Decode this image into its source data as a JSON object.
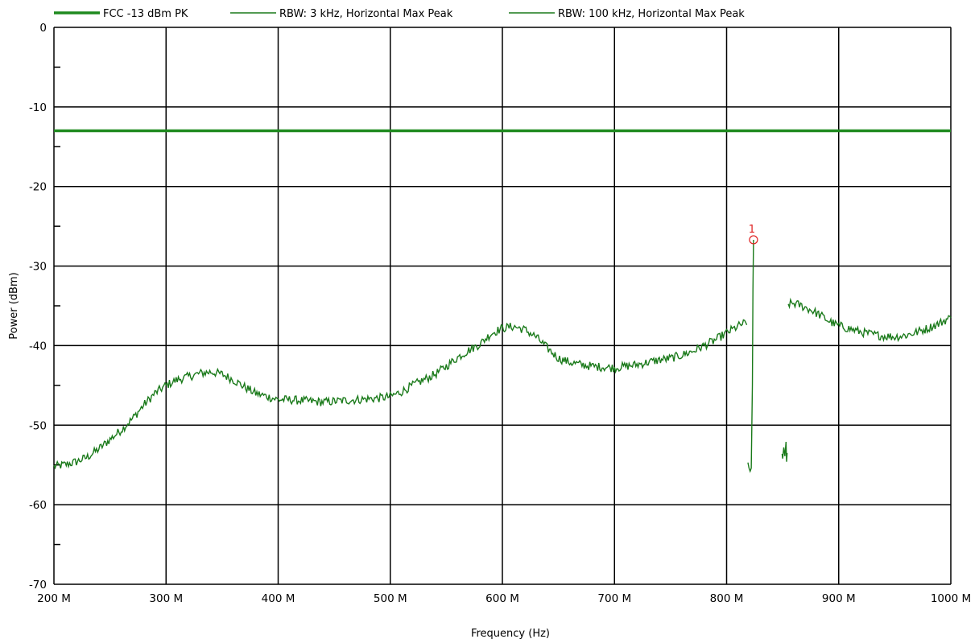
{
  "chart_data": {
    "type": "line",
    "title": "",
    "xlabel": "Frequency (Hz)",
    "ylabel": "Power (dBm)",
    "xlim": [
      200000000,
      1000000000
    ],
    "ylim": [
      -70,
      0
    ],
    "x_ticks": [
      200000000,
      300000000,
      400000000,
      500000000,
      600000000,
      700000000,
      800000000,
      900000000,
      1000000000
    ],
    "x_tick_labels": [
      "200 M",
      "300 M",
      "400 M",
      "500 M",
      "600 M",
      "700 M",
      "800 M",
      "900 M",
      "1000 M"
    ],
    "y_ticks": [
      0,
      -10,
      -20,
      -30,
      -40,
      -50,
      -60,
      -70
    ],
    "y_tick_labels": [
      "0",
      "-10",
      "-20",
      "-30",
      "-40",
      "-50",
      "-60",
      "-70"
    ],
    "grid": true,
    "legend_position": "top",
    "colors": {
      "limit": "#1f8a1f",
      "trace": "#1a7a1a",
      "marker": "#e02020",
      "grid": "#000000"
    },
    "series": [
      {
        "name": "FCC -13 dBm PK",
        "style": "thick",
        "x": [
          200000000,
          1000000000
        ],
        "y": [
          -13,
          -13
        ]
      },
      {
        "name": "RBW: 3 kHz, Horizontal Max Peak",
        "style": "thin",
        "x": [
          200000000,
          205000000,
          212000000,
          220000000,
          230000000,
          240000000,
          250000000,
          260000000,
          270000000,
          280000000,
          290000000,
          300000000,
          310000000,
          320000000,
          330000000,
          340000000,
          350000000,
          360000000,
          370000000,
          380000000,
          390000000,
          400000000,
          410000000,
          420000000,
          430000000,
          440000000,
          450000000,
          460000000,
          470000000,
          480000000,
          490000000,
          500000000,
          510000000,
          520000000,
          530000000,
          540000000,
          550000000,
          560000000,
          570000000,
          580000000,
          590000000,
          600000000,
          610000000,
          620000000,
          630000000,
          640000000,
          650000000,
          660000000,
          670000000,
          680000000,
          690000000,
          700000000,
          710000000,
          720000000,
          730000000,
          740000000,
          750000000,
          760000000,
          770000000,
          780000000,
          790000000,
          800000000,
          810000000,
          815000000,
          818000000
        ],
        "y": [
          -55.2,
          -55.1,
          -54.9,
          -54.6,
          -54.0,
          -53.0,
          -51.8,
          -50.6,
          -49.2,
          -47.5,
          -46.0,
          -45.0,
          -44.3,
          -43.9,
          -43.5,
          -43.3,
          -43.6,
          -44.3,
          -45.2,
          -46.0,
          -46.4,
          -46.8,
          -46.8,
          -46.9,
          -47.0,
          -47.1,
          -47.0,
          -46.9,
          -46.8,
          -46.7,
          -46.6,
          -46.4,
          -45.8,
          -45.0,
          -44.3,
          -43.6,
          -42.6,
          -41.5,
          -40.6,
          -39.8,
          -38.5,
          -37.8,
          -37.6,
          -38.0,
          -38.9,
          -40.3,
          -41.6,
          -42.1,
          -42.4,
          -42.6,
          -42.7,
          -42.8,
          -42.6,
          -42.4,
          -42.1,
          -41.8,
          -41.6,
          -41.2,
          -40.7,
          -40.0,
          -39.3,
          -38.4,
          -37.6,
          -37.2,
          -37.4
        ]
      },
      {
        "name": "RBW: 100 kHz, Horizontal Max Peak",
        "style": "thin",
        "segments": [
          {
            "x": [
              819000000,
              820000000,
              821000000,
              822000000,
              823000000,
              823500000,
              824000000
            ],
            "y": [
              -54.7,
              -55.4,
              -55.8,
              -55.4,
              -45.0,
              -33.0,
              -26.7
            ]
          },
          {
            "x": [
              849500000,
              850000000,
              851000000,
              852000000,
              853000000,
              853500000,
              854000000
            ],
            "y": [
              -53.6,
              -54.2,
              -52.8,
              -53.9,
              -52.1,
              -54.6,
              -53.5
            ]
          }
        ]
      },
      {
        "name": "RBW: 3 kHz, Horizontal Max Peak (continued)",
        "style": "thin",
        "hide_in_legend": true,
        "x": [
          855000000,
          860000000,
          865000000,
          870000000,
          875000000,
          880000000,
          885000000,
          890000000,
          895000000,
          900000000,
          910000000,
          920000000,
          930000000,
          940000000,
          950000000,
          960000000,
          970000000,
          980000000,
          990000000,
          995000000,
          1000000000
        ],
        "y": [
          -34.8,
          -34.7,
          -34.9,
          -35.2,
          -35.5,
          -35.9,
          -36.3,
          -36.8,
          -37.2,
          -37.5,
          -37.9,
          -38.3,
          -38.6,
          -38.8,
          -38.9,
          -38.7,
          -38.3,
          -37.8,
          -37.2,
          -36.8,
          -36.5
        ]
      }
    ],
    "markers": [
      {
        "label": "1",
        "x": 824000000,
        "y": -26.7
      }
    ]
  }
}
